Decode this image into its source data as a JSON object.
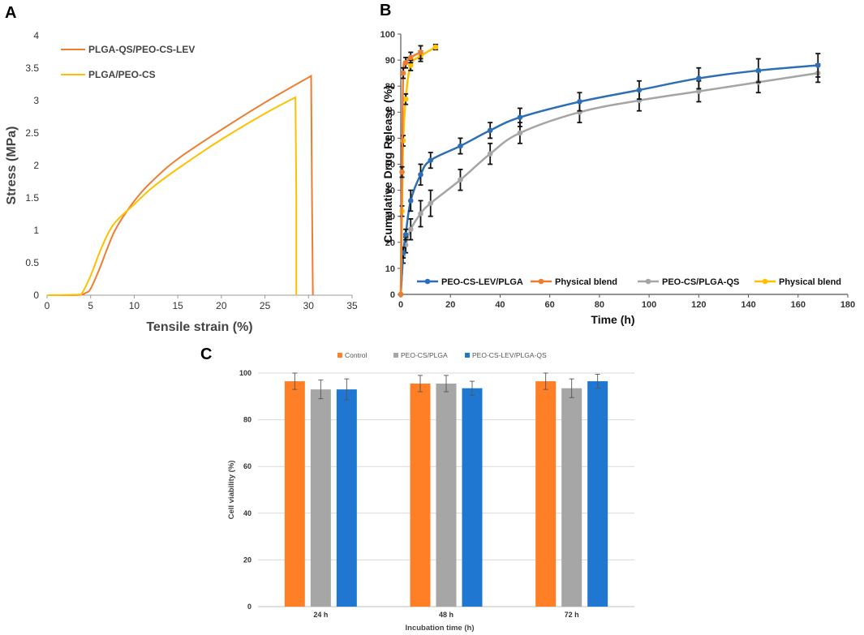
{
  "panels": {
    "a": "A",
    "b": "B",
    "c": "C"
  },
  "chart_data": [
    {
      "id": "panel-a",
      "type": "line",
      "xlabel": "Tensile strain (%)",
      "ylabel": "Stress (MPa)",
      "xlim": [
        0,
        35
      ],
      "ylim": [
        0,
        4
      ],
      "xticks": [
        0,
        5,
        10,
        15,
        20,
        25,
        30,
        35
      ],
      "yticks": [
        0,
        0.5,
        1,
        1.5,
        2,
        2.5,
        3,
        3.5,
        4
      ],
      "yticklabels": [
        "0",
        "0.5",
        "1",
        "1.5",
        "2",
        "2.5",
        "3",
        "3.5",
        "4"
      ],
      "legend_position": "top-left",
      "series": [
        {
          "name": "PLGA-QS/PEO-CS-LEV",
          "color": "#ED7D31",
          "x": [
            0,
            3,
            4,
            4.5,
            5,
            6,
            7,
            8,
            10,
            12,
            15,
            20,
            25,
            30.3,
            30.4,
            30.5
          ],
          "y": [
            0,
            0,
            0.01,
            0.04,
            0.1,
            0.4,
            0.75,
            1.05,
            1.45,
            1.75,
            2.1,
            2.55,
            2.97,
            3.38,
            1.5,
            0
          ]
        },
        {
          "name": "PLGA/PEO-CS",
          "color": "#FFC000",
          "x": [
            0,
            3.5,
            4,
            5,
            6,
            7,
            8,
            10,
            12,
            15,
            20,
            25,
            28.5,
            28.6,
            28.6
          ],
          "y": [
            0,
            0.01,
            0.03,
            0.3,
            0.65,
            0.95,
            1.15,
            1.4,
            1.65,
            1.95,
            2.4,
            2.8,
            3.05,
            1.5,
            0
          ]
        }
      ]
    },
    {
      "id": "panel-b",
      "type": "line",
      "xlabel": "Time (h)",
      "ylabel": "Cumulative Drug Release (%)",
      "xlim": [
        0,
        180
      ],
      "ylim": [
        0,
        100
      ],
      "xticks": [
        0,
        20,
        40,
        60,
        80,
        100,
        120,
        140,
        160,
        180
      ],
      "yticks": [
        0,
        10,
        20,
        30,
        40,
        50,
        60,
        70,
        80,
        90,
        100
      ],
      "legend_position": "bottom",
      "series": [
        {
          "name": "PEO-CS-LEV/PLGA",
          "color": "#2E6EB5",
          "x": [
            0,
            1,
            2,
            4,
            8,
            12,
            24,
            36,
            48,
            72,
            96,
            120,
            144,
            168
          ],
          "y": [
            0,
            16,
            23,
            36,
            46,
            51.5,
            57,
            63,
            68,
            74,
            78.5,
            83,
            86,
            88
          ],
          "err": [
            0,
            2,
            2,
            4,
            4,
            3,
            3,
            3,
            3.5,
            3.5,
            3.5,
            4,
            4.5,
            4.5
          ]
        },
        {
          "name": "Physical blend",
          "color": "#ED7D31",
          "x": [
            0,
            0.5,
            1,
            2,
            4,
            8
          ],
          "y": [
            0,
            47,
            85,
            89,
            91,
            93
          ],
          "err": [
            0,
            2,
            2,
            2,
            2,
            2.5
          ]
        },
        {
          "name": "PEO-CS/PLGA-QS",
          "color": "#A5A5A5",
          "x": [
            0,
            1,
            2,
            4,
            8,
            12,
            24,
            36,
            48,
            72,
            96,
            120,
            144,
            168
          ],
          "y": [
            0,
            15,
            19,
            25,
            31,
            35,
            44,
            54,
            62,
            70,
            74.5,
            78,
            81.5,
            85
          ],
          "err": [
            0,
            3,
            3,
            4,
            5,
            5,
            4,
            4,
            4,
            4,
            4,
            4,
            4,
            3.5
          ]
        },
        {
          "name": "Physical blend",
          "color": "#FFC000",
          "x": [
            0,
            0.5,
            1,
            2,
            4,
            8,
            14
          ],
          "y": [
            0,
            32,
            59,
            75,
            88,
            91.5,
            95
          ],
          "err": [
            0,
            2,
            2,
            2,
            2,
            2,
            1
          ]
        }
      ]
    },
    {
      "id": "panel-c",
      "type": "bar",
      "xlabel": "Incubation time (h)",
      "ylabel": "Cell viability (%)",
      "ylim": [
        0,
        100
      ],
      "yticks": [
        0,
        20,
        40,
        60,
        80,
        100
      ],
      "categories": [
        "24 h",
        "48 h",
        "72 h"
      ],
      "legend_position": "top",
      "series": [
        {
          "name": "Control",
          "color": "#FF7F27",
          "values": [
            96.5,
            95.5,
            96.5
          ],
          "err": [
            3.5,
            3.5,
            3.5
          ]
        },
        {
          "name": "PEO-CS/PLGA",
          "color": "#A6A6A6",
          "values": [
            93,
            95.5,
            93.5
          ],
          "err": [
            4,
            3.5,
            4
          ]
        },
        {
          "name": "PEO-CS-LEV/PLGA-QS",
          "color": "#1F77D2",
          "values": [
            93,
            93.5,
            96.5
          ],
          "err": [
            4.5,
            3,
            3
          ]
        }
      ]
    }
  ]
}
